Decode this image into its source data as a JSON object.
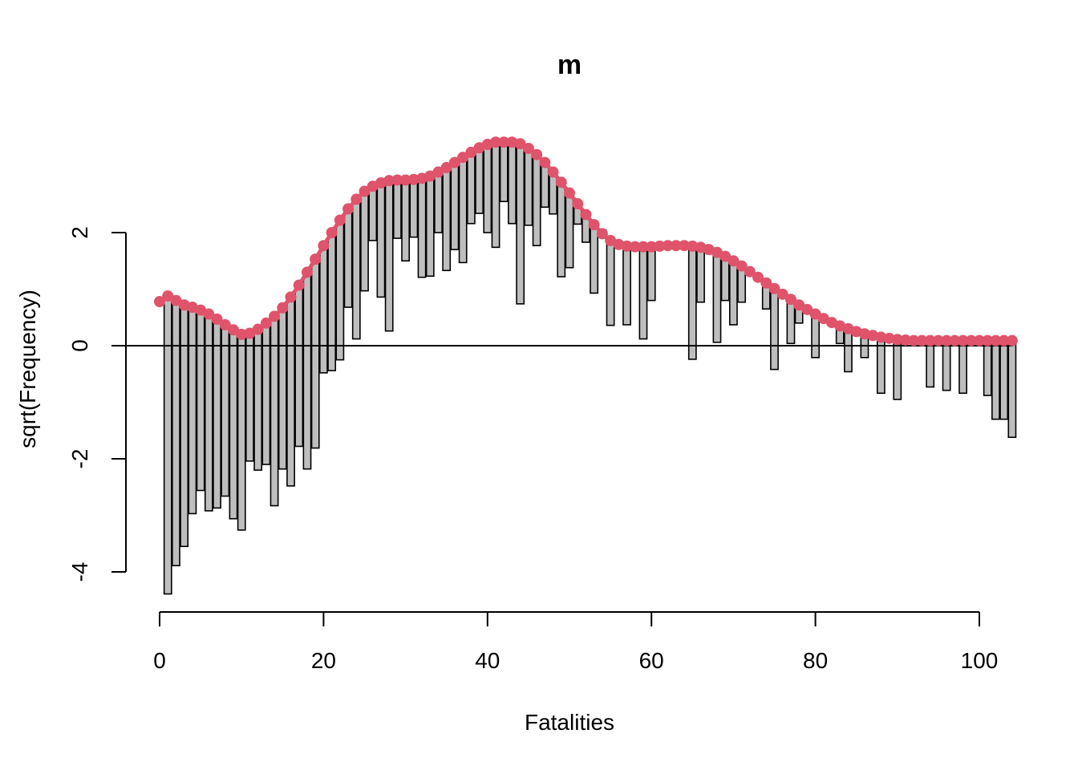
{
  "chart_data": {
    "type": "bar",
    "title": "m",
    "xlabel": "Fatalities",
    "ylabel": "sqrt(Frequency)",
    "xlim": [
      -4,
      104
    ],
    "ylim": [
      -4.7,
      3.9
    ],
    "xticks": [
      "0",
      "20",
      "40",
      "60",
      "80",
      "100"
    ],
    "yticks": [
      "-4",
      "-2",
      "0",
      "2"
    ],
    "reference_line_y": 0,
    "colors": {
      "bars": "#bebebe",
      "bar_border": "#000000",
      "curve": "#df536b"
    },
    "series": [
      {
        "kind": "hanging_bars",
        "x": [
          1,
          2,
          3,
          4,
          5,
          6,
          7,
          8,
          9,
          10,
          11,
          12,
          13,
          14,
          15,
          16,
          17,
          18,
          19,
          20,
          21,
          22,
          23,
          24,
          25,
          26,
          27,
          28,
          29,
          30,
          31,
          32,
          33,
          34,
          35,
          36,
          37,
          38,
          39,
          40,
          41,
          42,
          43,
          44,
          45,
          46,
          47,
          48,
          49,
          50,
          51,
          52,
          53,
          54,
          55,
          56,
          57,
          58,
          59,
          60,
          61,
          62,
          63,
          64,
          65,
          66,
          67,
          68,
          69,
          70,
          71,
          72,
          73,
          74,
          75,
          76,
          77,
          78,
          79,
          80,
          81,
          82,
          83,
          84,
          85,
          86,
          87,
          88,
          89,
          90,
          91,
          92,
          93,
          94,
          95,
          96,
          97,
          98,
          99,
          100,
          101,
          102,
          103,
          104
        ],
        "top": [
          0.88,
          0.8,
          0.72,
          0.68,
          0.63,
          0.56,
          0.47,
          0.37,
          0.28,
          0.2,
          0.22,
          0.29,
          0.4,
          0.52,
          0.67,
          0.86,
          1.07,
          1.3,
          1.53,
          1.77,
          2.0,
          2.22,
          2.42,
          2.59,
          2.73,
          2.82,
          2.88,
          2.92,
          2.93,
          2.93,
          2.94,
          2.96,
          3.0,
          3.07,
          3.15,
          3.24,
          3.33,
          3.42,
          3.5,
          3.56,
          3.6,
          3.6,
          3.6,
          3.57,
          3.49,
          3.38,
          3.24,
          3.07,
          2.89,
          2.7,
          2.51,
          2.32,
          2.14,
          1.98,
          1.86,
          1.79,
          1.76,
          1.75,
          1.75,
          1.75,
          1.76,
          1.77,
          1.77,
          1.77,
          1.76,
          1.74,
          1.7,
          1.65,
          1.58,
          1.5,
          1.41,
          1.31,
          1.21,
          1.11,
          1.01,
          0.91,
          0.82,
          0.72,
          0.64,
          0.56,
          0.48,
          0.41,
          0.35,
          0.3,
          0.25,
          0.21,
          0.18,
          0.15,
          0.13,
          0.11,
          0.1,
          0.09,
          0.09,
          0.09,
          0.09,
          0.09,
          0.09,
          0.09,
          0.09,
          0.09,
          0.09,
          0.09,
          0.09,
          0.09
        ],
        "bottom": [
          -4.39,
          -3.89,
          -3.55,
          -2.97,
          -2.56,
          -2.92,
          -2.87,
          -2.66,
          -3.06,
          -3.26,
          -2.04,
          -2.2,
          -2.1,
          -2.83,
          -2.18,
          -2.48,
          -1.78,
          -2.18,
          -1.81,
          -0.48,
          -0.44,
          -0.25,
          0.68,
          0.12,
          0.97,
          1.86,
          0.86,
          0.26,
          1.9,
          1.5,
          1.92,
          1.21,
          1.23,
          2.0,
          1.33,
          1.7,
          1.47,
          2.16,
          2.34,
          2.0,
          1.74,
          2.55,
          2.16,
          0.74,
          2.13,
          1.77,
          2.45,
          2.33,
          1.22,
          1.38,
          2.15,
          1.83,
          0.93,
          2.05,
          0.36,
          1.76,
          0.37,
          1.75,
          0.12,
          0.8,
          1.75,
          1.76,
          1.76,
          1.75,
          -0.24,
          0.77,
          1.75,
          0.06,
          0.8,
          0.37,
          0.77,
          1.31,
          1.21,
          0.65,
          -0.42,
          0.91,
          0.04,
          0.4,
          0.64,
          -0.21,
          0.48,
          0.41,
          0.04,
          -0.46,
          0.25,
          -0.21,
          0.18,
          -0.84,
          0.13,
          -0.95,
          0.1,
          0.09,
          0.09,
          -0.73,
          0.09,
          -0.79,
          0.09,
          -0.84,
          0.09,
          0.09,
          -0.88,
          -1.3,
          -1.3,
          -1.62
        ]
      },
      {
        "kind": "fitted_curve",
        "x": [
          0,
          1,
          2,
          3,
          4,
          5,
          6,
          7,
          8,
          9,
          10,
          11,
          12,
          13,
          14,
          15,
          16,
          17,
          18,
          19,
          20,
          21,
          22,
          23,
          24,
          25,
          26,
          27,
          28,
          29,
          30,
          31,
          32,
          33,
          34,
          35,
          36,
          37,
          38,
          39,
          40,
          41,
          42,
          43,
          44,
          45,
          46,
          47,
          48,
          49,
          50,
          51,
          52,
          53,
          54,
          55,
          56,
          57,
          58,
          59,
          60,
          61,
          62,
          63,
          64,
          65,
          66,
          67,
          68,
          69,
          70,
          71,
          72,
          73,
          74,
          75,
          76,
          77,
          78,
          79,
          80,
          81,
          82,
          83,
          84,
          85,
          86,
          87,
          88,
          89,
          90,
          91,
          92,
          93,
          94,
          95,
          96,
          97,
          98,
          99,
          100,
          101,
          102,
          103,
          104
        ],
        "y": [
          0.78,
          0.88,
          0.8,
          0.72,
          0.68,
          0.63,
          0.56,
          0.47,
          0.37,
          0.28,
          0.2,
          0.22,
          0.29,
          0.4,
          0.52,
          0.67,
          0.86,
          1.07,
          1.3,
          1.53,
          1.77,
          2.0,
          2.22,
          2.42,
          2.59,
          2.73,
          2.82,
          2.88,
          2.92,
          2.93,
          2.93,
          2.94,
          2.96,
          3.0,
          3.07,
          3.15,
          3.24,
          3.33,
          3.42,
          3.5,
          3.56,
          3.6,
          3.6,
          3.6,
          3.57,
          3.49,
          3.38,
          3.24,
          3.07,
          2.89,
          2.7,
          2.51,
          2.32,
          2.14,
          1.98,
          1.86,
          1.79,
          1.76,
          1.75,
          1.75,
          1.75,
          1.76,
          1.77,
          1.77,
          1.77,
          1.76,
          1.74,
          1.7,
          1.65,
          1.58,
          1.5,
          1.41,
          1.31,
          1.21,
          1.11,
          1.01,
          0.91,
          0.82,
          0.72,
          0.64,
          0.56,
          0.48,
          0.41,
          0.35,
          0.3,
          0.25,
          0.21,
          0.18,
          0.15,
          0.13,
          0.11,
          0.1,
          0.09,
          0.09,
          0.09,
          0.09,
          0.09,
          0.09,
          0.09,
          0.09,
          0.09,
          0.09,
          0.09,
          0.09,
          0.09
        ]
      }
    ]
  }
}
